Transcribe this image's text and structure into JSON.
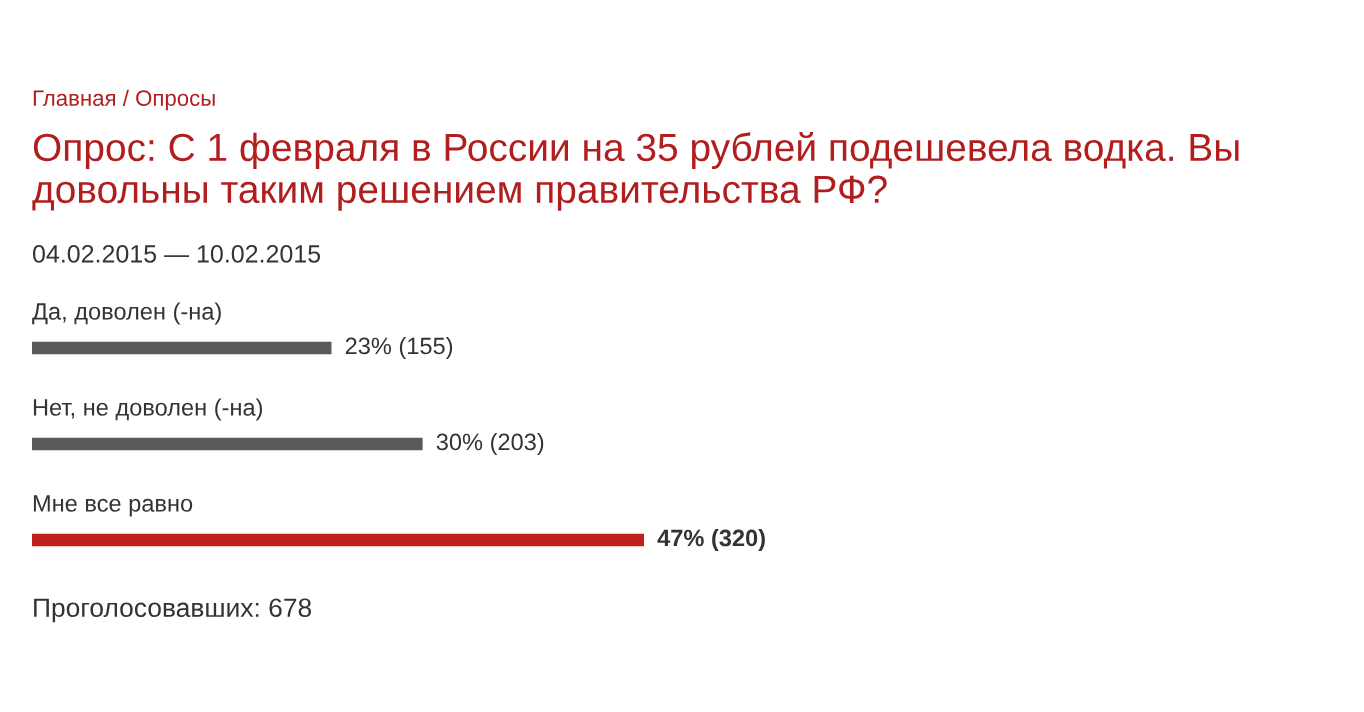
{
  "chart_data": {
    "type": "bar",
    "orientation": "horizontal",
    "title": "Опрос: С 1 февраля в России на 35 рублей подешевела водка. Вы довольны таким решением правительства РФ?",
    "subtitle": "04.02.2015 — 10.02.2015",
    "categories": [
      "Да, доволен (-на)",
      "Нет, не доволен (-на)",
      "Мне все равно"
    ],
    "values": [
      23,
      30,
      47
    ],
    "value_labels": [
      "23% (155)",
      "30% (203)",
      "47% (320)"
    ],
    "colors": [
      "#5a5a5a",
      "#5a5a5a",
      "#c0201a"
    ],
    "legend": false,
    "annotations": [
      "Главная / Опросы",
      "Проголосовавших: 678"
    ]
  }
}
